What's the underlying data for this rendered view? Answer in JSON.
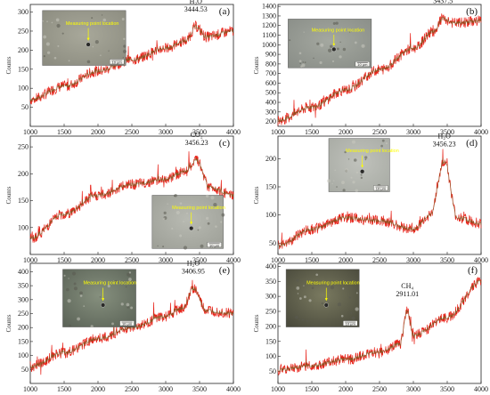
{
  "colors": {
    "axis": "#222222",
    "spectrum_main": "#e8231a",
    "spectrum_dark": "#7a5a22",
    "inset_text": "#ffff00",
    "arrow": "#ffff00"
  },
  "chart_data": [
    {
      "type": "line",
      "panel": "(a)",
      "ylabel": "Counts",
      "xlim": [
        1000,
        4000
      ],
      "ylim": [
        0,
        320
      ],
      "xticks": [
        "1000",
        "1500",
        "2000",
        "2500",
        "3000",
        "3500",
        "4000"
      ],
      "yticks": [
        "50",
        "100",
        "150",
        "200",
        "250",
        "300"
      ],
      "peak": {
        "species": "H2O",
        "species_label": "H₂O",
        "position": "3444.53"
      },
      "inset": {
        "label": "Measuring point location",
        "scale": "10 μm"
      },
      "series": [
        {
          "x": [
            1000,
            1500,
            2000,
            2500,
            3000,
            3300,
            3444.53,
            3600,
            4000
          ],
          "values": [
            70,
            105,
            145,
            175,
            205,
            225,
            262,
            235,
            250
          ]
        }
      ]
    },
    {
      "type": "line",
      "panel": "(b)",
      "ylabel": "Counts",
      "xlim": [
        1000,
        4000
      ],
      "ylim": [
        150,
        1420
      ],
      "xticks": [
        "1000",
        "1500",
        "2000",
        "2500",
        "3000",
        "3500",
        "4000"
      ],
      "yticks": [
        "200",
        "300",
        "400",
        "500",
        "600",
        "700",
        "800",
        "900",
        "1000",
        "1100",
        "1200",
        "1300",
        "1400"
      ],
      "peak": {
        "species": "H2O",
        "species_label": "H₂O",
        "position": "3437.5"
      },
      "inset": {
        "label": "Measuring point location",
        "scale": "10 μm"
      },
      "series": [
        {
          "x": [
            1000,
            1500,
            2000,
            2500,
            3000,
            3300,
            3437.5,
            3600,
            4000
          ],
          "values": [
            210,
            350,
            530,
            740,
            960,
            1140,
            1275,
            1225,
            1250
          ]
        }
      ]
    },
    {
      "type": "line",
      "panel": "(c)",
      "ylabel": "Counts",
      "xlim": [
        1000,
        4000
      ],
      "ylim": [
        50,
        270
      ],
      "xticks": [
        "1000",
        "1500",
        "2000",
        "2500",
        "3000",
        "3500",
        "4000"
      ],
      "yticks": [
        "100",
        "150",
        "200",
        "250"
      ],
      "peak": {
        "species": "CO2",
        "species_label": "CO₂",
        "position": "3456.23"
      },
      "inset": {
        "label": "Measuring point location",
        "scale": "10 μm"
      },
      "series": [
        {
          "x": [
            1000,
            1500,
            2000,
            2500,
            3000,
            3300,
            3456.23,
            3650,
            4000
          ],
          "values": [
            80,
            125,
            160,
            180,
            190,
            205,
            225,
            175,
            160
          ]
        }
      ]
    },
    {
      "type": "line",
      "panel": "(d)",
      "ylabel": "Counts",
      "xlim": [
        1000,
        4000
      ],
      "ylim": [
        30,
        240
      ],
      "xticks": [
        "1000",
        "1500",
        "2000",
        "2500",
        "3000",
        "3500",
        "4000"
      ],
      "yticks": [
        "50",
        "100",
        "150",
        "200"
      ],
      "peak": {
        "species": "H2O",
        "species_label": "H₂O",
        "position": "3456.23"
      },
      "inset": {
        "label": "Measuring point location",
        "scale": "10 μm"
      },
      "series": [
        {
          "x": [
            1000,
            1500,
            2000,
            2500,
            3000,
            3250,
            3456.23,
            3650,
            4000
          ],
          "values": [
            45,
            75,
            95,
            90,
            75,
            100,
            195,
            95,
            85
          ]
        }
      ]
    },
    {
      "type": "line",
      "panel": "(e)",
      "ylabel": "Counts",
      "xlim": [
        1000,
        4000
      ],
      "ylim": [
        0,
        430
      ],
      "xticks": [
        "1000",
        "1500",
        "2000",
        "2500",
        "3000",
        "3500",
        "4000"
      ],
      "yticks": [
        "50",
        "100",
        "150",
        "200",
        "250",
        "300",
        "350",
        "400"
      ],
      "peak": {
        "species": "H2O",
        "species_label": "H₂O",
        "position": "3406.95"
      },
      "inset": {
        "label": "Measuring point location",
        "scale": "10 μm"
      },
      "series": [
        {
          "x": [
            1000,
            1500,
            2000,
            2500,
            3000,
            3250,
            3406.95,
            3600,
            4000
          ],
          "values": [
            60,
            110,
            160,
            200,
            240,
            270,
            340,
            260,
            250
          ]
        }
      ]
    },
    {
      "type": "line",
      "panel": "(f)",
      "ylabel": "Counts",
      "xlim": [
        1000,
        4000
      ],
      "ylim": [
        10,
        410
      ],
      "xticks": [
        "1000",
        "1500",
        "2000",
        "2500",
        "3000",
        "3500",
        "4000"
      ],
      "yticks": [
        "50",
        "100",
        "150",
        "200",
        "250",
        "300",
        "350",
        "400"
      ],
      "peak": {
        "species": "CH4",
        "species_label": "CH₄",
        "position": "2911.01"
      },
      "inset": {
        "label": "Measuring point location",
        "scale": "10 μm"
      },
      "series": [
        {
          "x": [
            1000,
            1500,
            2000,
            2500,
            2800,
            2911.01,
            3000,
            3500,
            4000
          ],
          "values": [
            55,
            70,
            90,
            115,
            140,
            250,
            170,
            230,
            350
          ]
        }
      ]
    }
  ]
}
